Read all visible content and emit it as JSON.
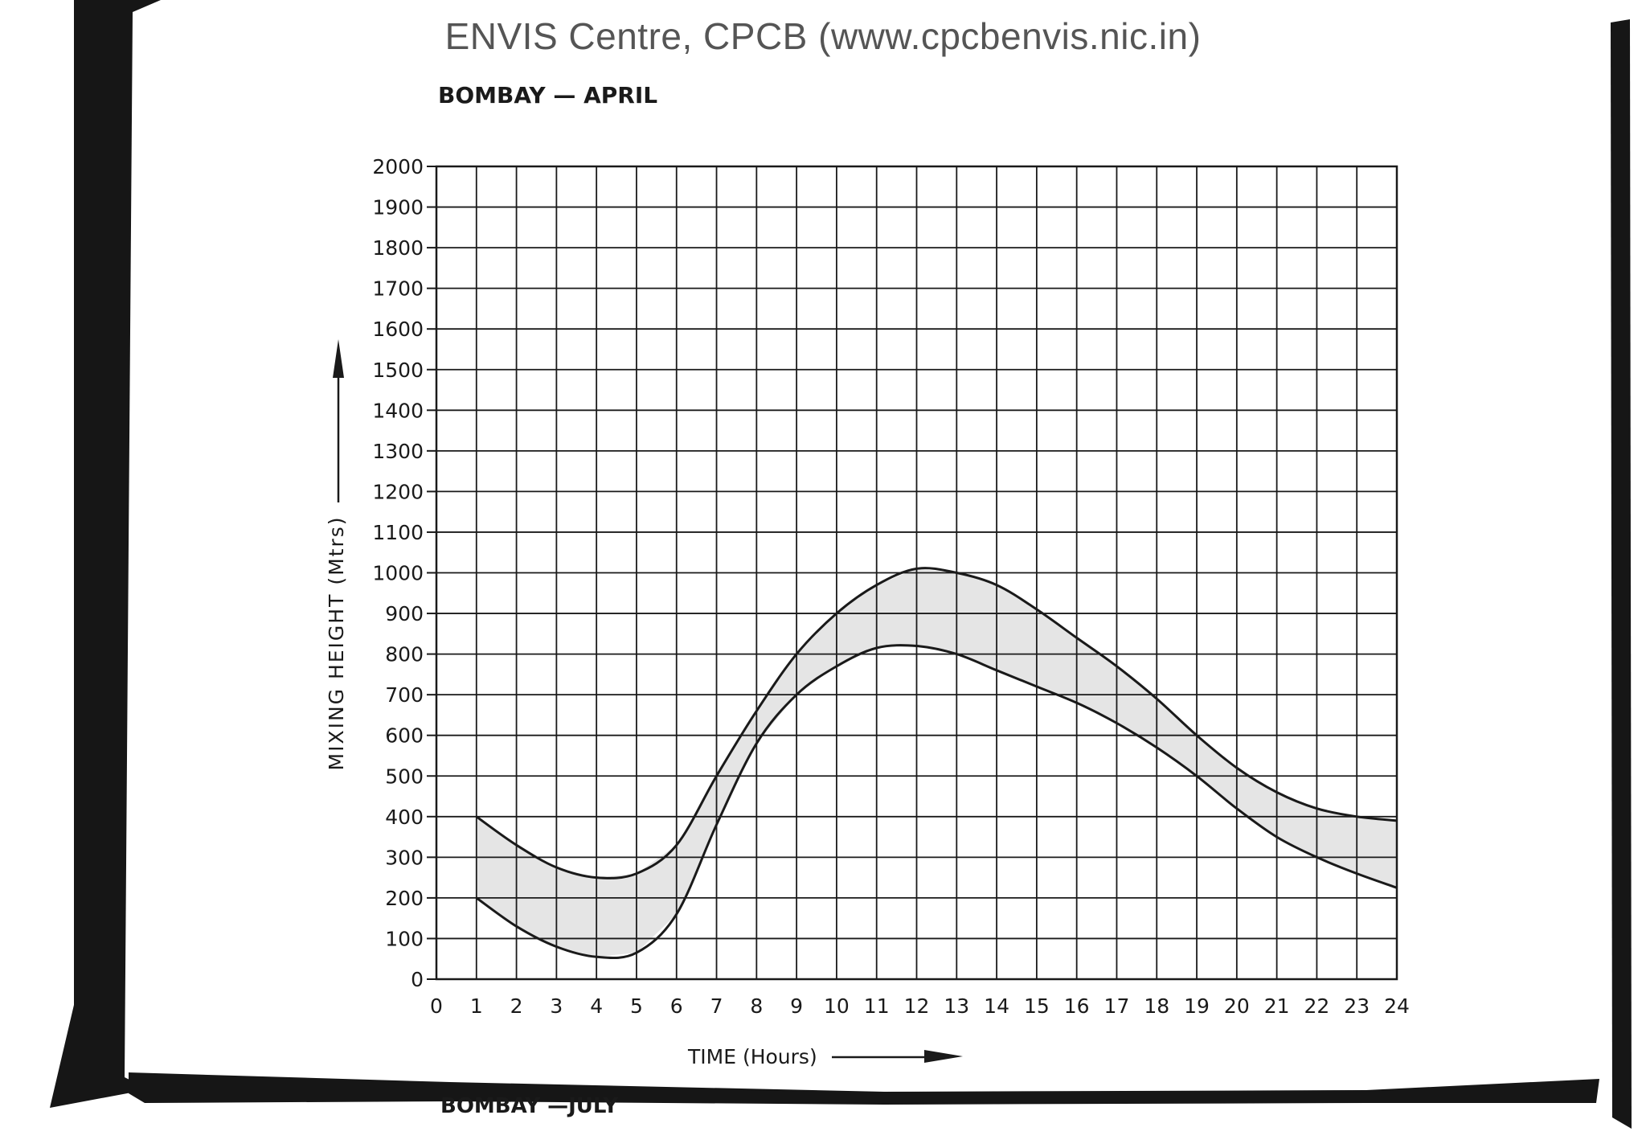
{
  "watermark": "ENVIS Centre, CPCB (www.cpcbenvis.nic.in)",
  "next_chart_title": "BOMBAY —JULY",
  "colors": {
    "ink": "#1a1a1a",
    "border": "#161616",
    "band_fill": "#dcdcdc",
    "header": "#555555"
  },
  "chart_data": {
    "type": "area",
    "title": "BOMBAY — APRIL",
    "xlabel": "TIME (Hours)",
    "ylabel": "MIXING HEIGHT (Mtrs)",
    "xlim": [
      0,
      24
    ],
    "ylim": [
      0,
      2000
    ],
    "grid": true,
    "x_ticks": [
      0,
      1,
      2,
      3,
      4,
      5,
      6,
      7,
      8,
      9,
      10,
      11,
      12,
      13,
      14,
      15,
      16,
      17,
      18,
      19,
      20,
      21,
      22,
      23,
      24
    ],
    "y_ticks": [
      0,
      100,
      200,
      300,
      400,
      500,
      600,
      700,
      800,
      900,
      1000,
      1100,
      1200,
      1300,
      1400,
      1500,
      1600,
      1700,
      1800,
      1900,
      2000
    ],
    "x": [
      1,
      2,
      3,
      4,
      5,
      6,
      7,
      8,
      9,
      10,
      11,
      12,
      13,
      14,
      15,
      16,
      17,
      18,
      19,
      20,
      21,
      22,
      23,
      24
    ],
    "series": [
      {
        "values": [
          400,
          330,
          275,
          250,
          260,
          330,
          500,
          660,
          800,
          900,
          970,
          1010,
          1000,
          970,
          910,
          840,
          770,
          690,
          600,
          520,
          460,
          420,
          400,
          390
        ]
      },
      {
        "values": [
          200,
          130,
          80,
          55,
          65,
          160,
          380,
          580,
          700,
          770,
          815,
          820,
          800,
          760,
          720,
          680,
          630,
          570,
          500,
          420,
          350,
          300,
          260,
          225
        ]
      }
    ]
  }
}
